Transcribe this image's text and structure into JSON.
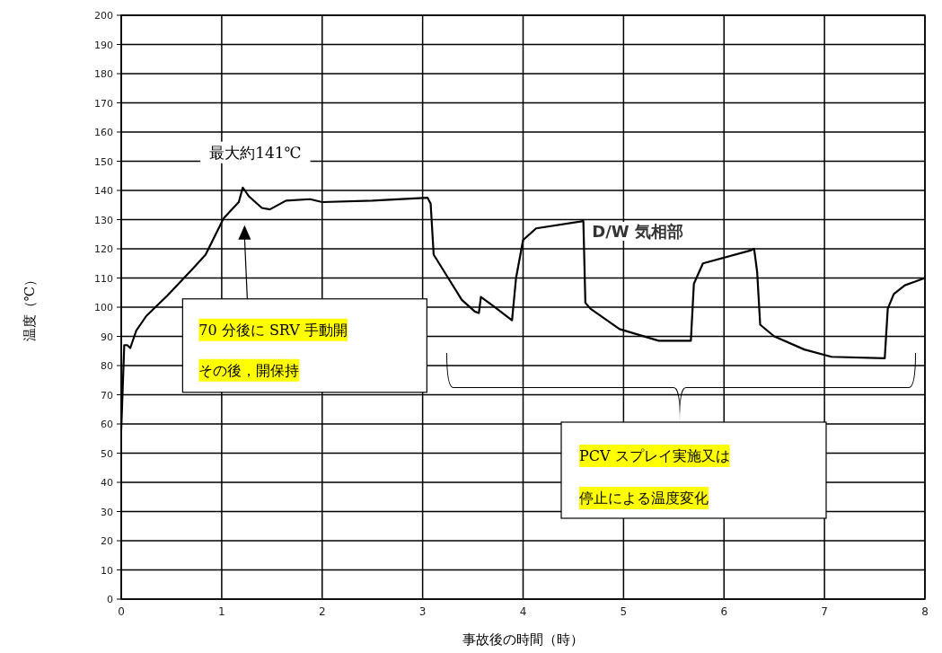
{
  "chart_data": {
    "type": "line",
    "xlabel": "事故後の時間（時）",
    "ylabel": "温度（℃）",
    "xlim": [
      0,
      8
    ],
    "ylim": [
      0,
      200
    ],
    "xticks": [
      0,
      1,
      2,
      3,
      4,
      5,
      6,
      7,
      8
    ],
    "yticks": [
      0,
      10,
      20,
      30,
      40,
      50,
      60,
      70,
      80,
      90,
      100,
      110,
      120,
      130,
      140,
      150,
      160,
      170,
      180,
      190,
      200
    ],
    "grid": true,
    "marker": "none",
    "line_style": "solid",
    "series": [
      {
        "name": "D/W 気相部",
        "color": "#000000",
        "x": [
          0,
          0.03,
          0.06,
          0.09,
          0.15,
          0.25,
          0.46,
          0.72,
          0.84,
          1.02,
          1.17,
          1.21,
          1.27,
          1.4,
          1.48,
          1.64,
          1.88,
          2.0,
          2.5,
          3.05,
          3.08,
          3.11,
          3.39,
          3.52,
          3.56,
          3.58,
          3.7,
          3.89,
          3.93,
          4.0,
          4.13,
          4.6,
          4.62,
          4.67,
          4.96,
          5.35,
          5.67,
          5.7,
          5.79,
          6.27,
          6.3,
          6.33,
          6.36,
          6.5,
          6.8,
          7.07,
          7.6,
          7.63,
          7.69,
          7.8,
          8.0
        ],
        "values": [
          58,
          87,
          87,
          86,
          92,
          97,
          104,
          113.5,
          118,
          130.5,
          136,
          141,
          138,
          134,
          133.5,
          136.5,
          137,
          136,
          136.5,
          137.5,
          135.5,
          118,
          102.5,
          98.5,
          98,
          103.5,
          100.5,
          95.5,
          110,
          123,
          127,
          129.5,
          101.5,
          99.5,
          92.5,
          88.5,
          88.5,
          108,
          115,
          119.5,
          120,
          112,
          94,
          90,
          85.5,
          83,
          82.5,
          99.5,
          104.5,
          107.5,
          110
        ]
      }
    ],
    "annotations": [
      {
        "text": "最大約141℃",
        "x": 1.21,
        "y": 141
      },
      "70 分後に SRV 手動開その後，開保持",
      "PCV スプレイ実施又は停止による温度変化"
    ]
  }
}
